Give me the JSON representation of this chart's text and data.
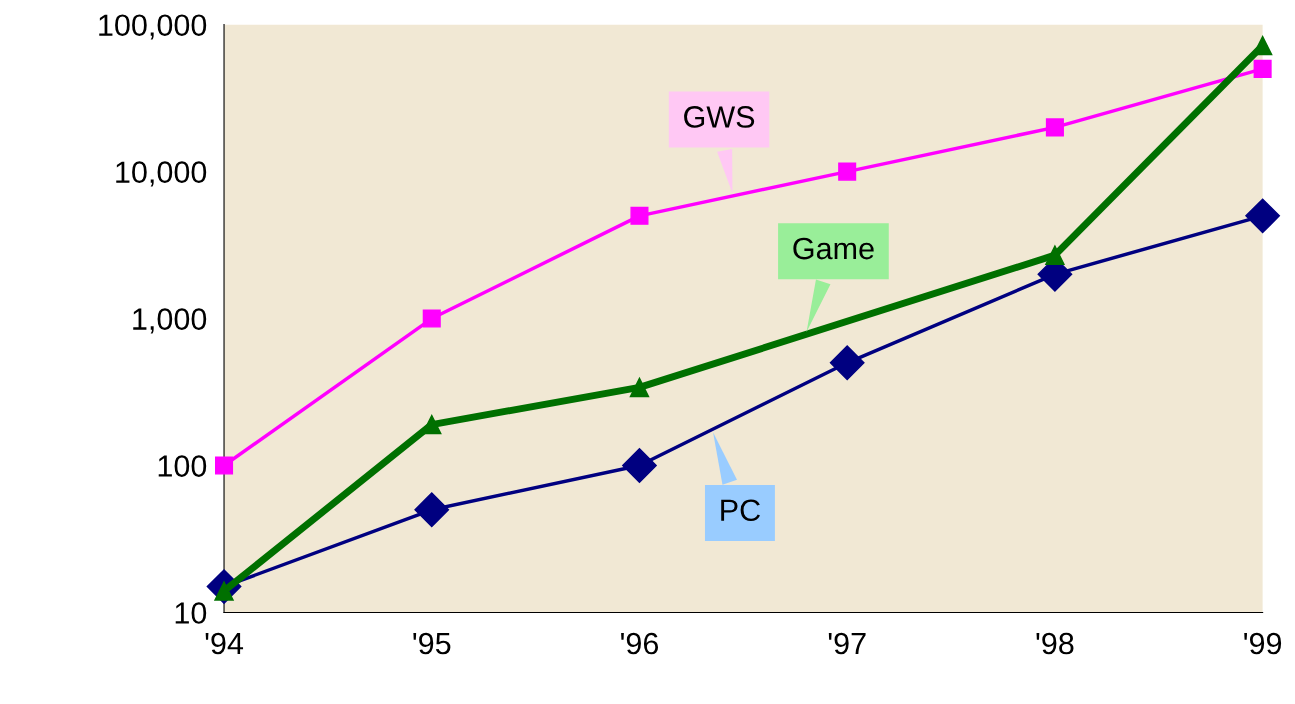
{
  "chart_data": {
    "type": "line",
    "log": "y",
    "grid": false,
    "legend": false,
    "x": [
      1994,
      1995,
      1996,
      1997,
      1998,
      1999
    ],
    "xlim": [
      1994,
      1999
    ],
    "xticks": [
      {
        "value": 1994,
        "label": "'94"
      },
      {
        "value": 1995,
        "label": "'95"
      },
      {
        "value": 1996,
        "label": "'96"
      },
      {
        "value": 1997,
        "label": "'97"
      },
      {
        "value": 1998,
        "label": "'98"
      },
      {
        "value": 1999,
        "label": "'99"
      }
    ],
    "ylim": [
      10,
      100000
    ],
    "yticks": [
      {
        "value": 10,
        "label": "10"
      },
      {
        "value": 100,
        "label": "100"
      },
      {
        "value": 1000,
        "label": "1,000"
      },
      {
        "value": 10000,
        "label": "10,000"
      },
      {
        "value": 100000,
        "label": "100,000"
      }
    ],
    "series": [
      {
        "name": "GWS",
        "color": "#ff00ff",
        "marker": "square",
        "values": [
          100,
          1000,
          5000,
          10000,
          20000,
          50000
        ]
      },
      {
        "name": "Game",
        "color": "#007000",
        "marker": "triangle",
        "x": [
          1994,
          1995,
          1996,
          1998,
          1999
        ],
        "values": [
          14,
          190,
          340,
          2700,
          72000
        ]
      },
      {
        "name": "PC",
        "color": "#000080",
        "marker": "diamond",
        "values": [
          15,
          50,
          100,
          500,
          2000,
          5000
        ]
      }
    ]
  }
}
